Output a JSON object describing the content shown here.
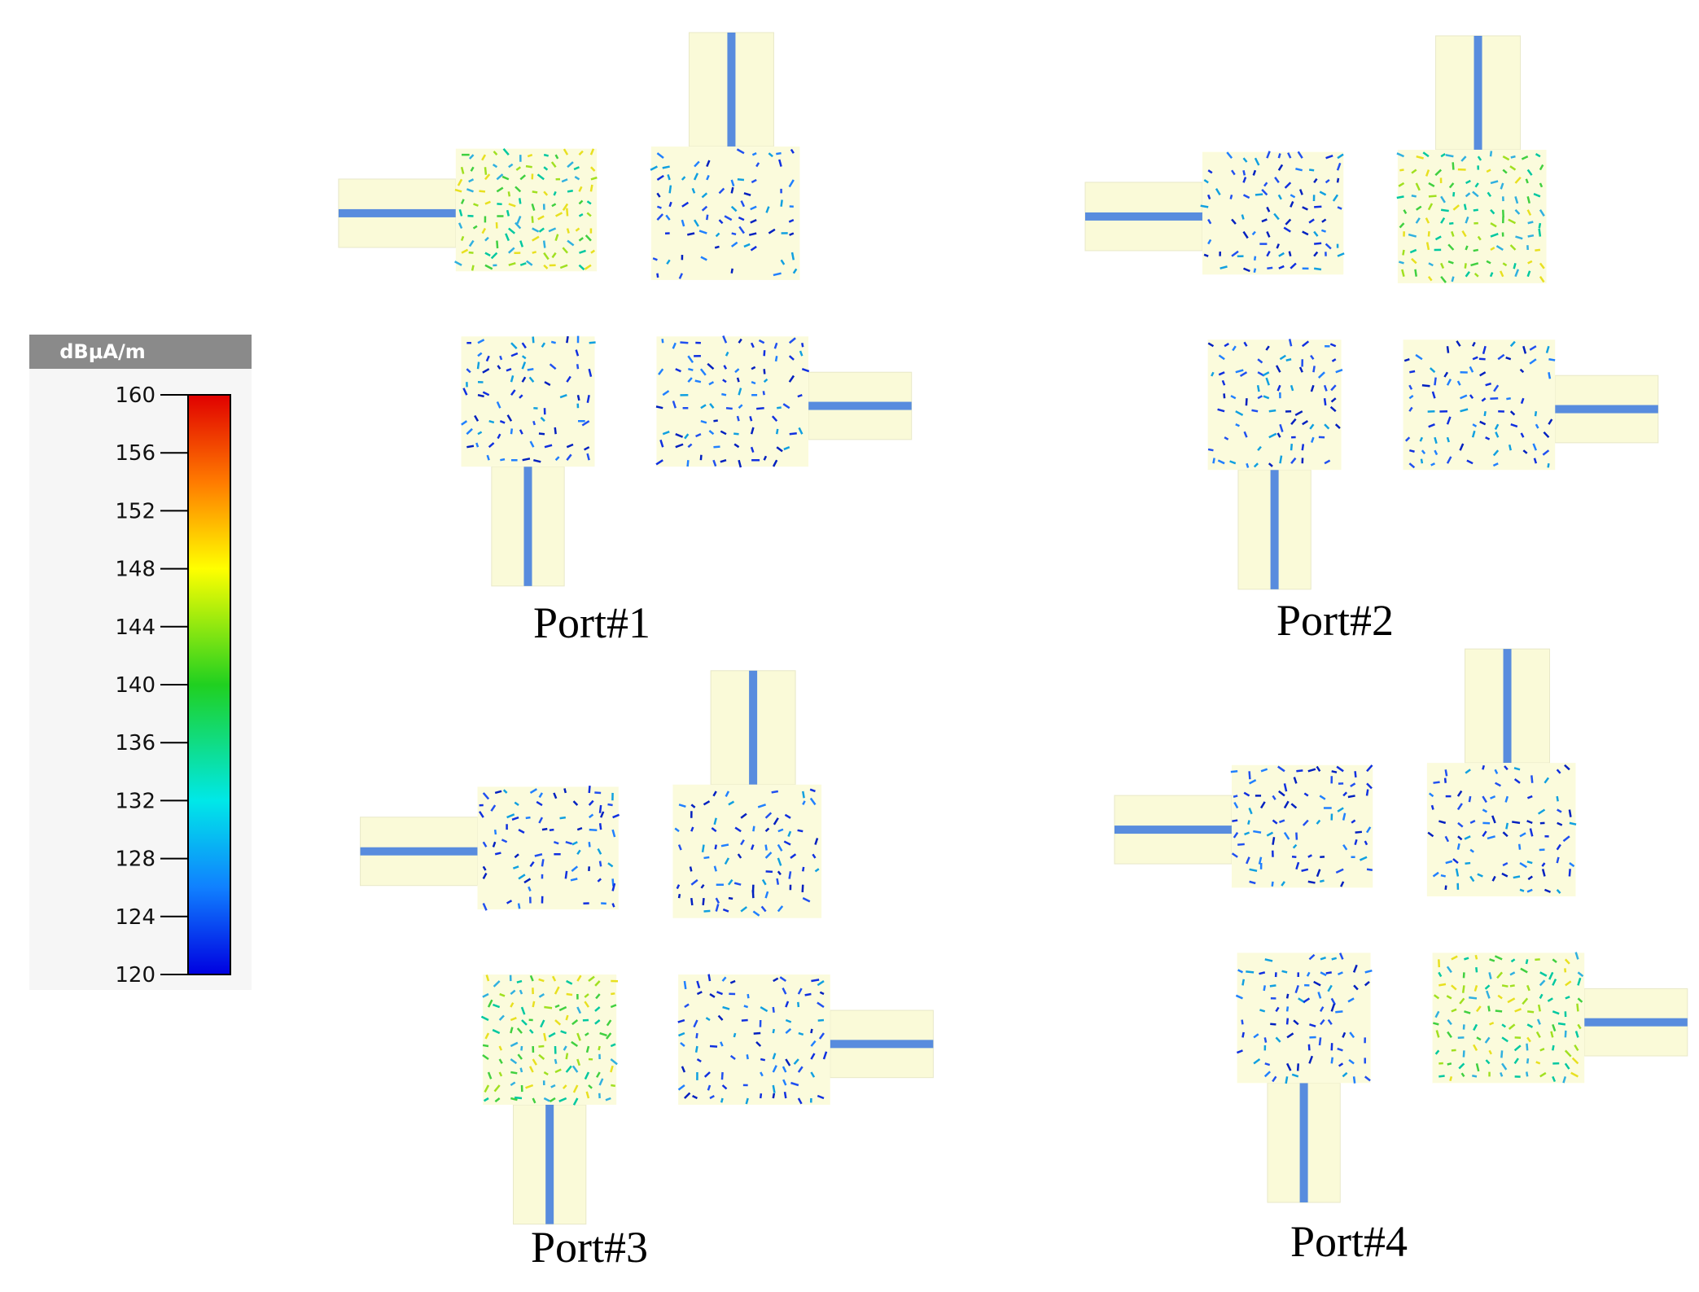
{
  "colorbar": {
    "title": "dBμA/m",
    "range": [
      120,
      160
    ],
    "ticks": [
      160,
      156,
      152,
      148,
      144,
      140,
      136,
      132,
      128,
      124,
      120
    ]
  },
  "panels": [
    {
      "label": "Port#1"
    },
    {
      "label": "Port#2"
    },
    {
      "label": "Port#3"
    },
    {
      "label": "Port#4"
    }
  ]
}
